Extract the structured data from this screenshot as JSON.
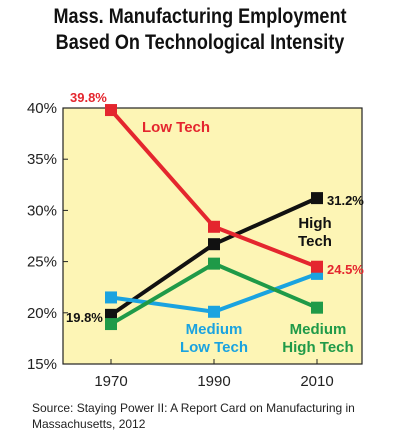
{
  "title_line1": "Mass. Manufacturing Employment",
  "title_line2": "Based On Technological Intensity",
  "source": "Source: Staying Power II: A Report Card on Manufacturing in Massachusetts, 2012",
  "chart_data": {
    "type": "line",
    "title": "Mass. Manufacturing Employment Based On Technological Intensity",
    "x": [
      "1970",
      "1990",
      "2010"
    ],
    "ylim": [
      15,
      40
    ],
    "yticks": [
      "15%",
      "20%",
      "25%",
      "30%",
      "35%",
      "40%"
    ],
    "ytick_values": [
      15,
      20,
      25,
      30,
      35,
      40
    ],
    "grid": false,
    "background": "#fdf5b5",
    "series": [
      {
        "name": "Low Tech",
        "color": "#e4262e",
        "values": [
          39.8,
          28.4,
          24.5
        ]
      },
      {
        "name": "High Tech",
        "color": "#111111",
        "values": [
          19.8,
          26.7,
          31.2
        ]
      },
      {
        "name": "Medium Low Tech",
        "color": "#1aa3e0",
        "values": [
          21.5,
          20.1,
          23.8
        ]
      },
      {
        "name": "Medium High Tech",
        "color": "#1f9a48",
        "values": [
          18.9,
          24.8,
          20.5
        ]
      }
    ],
    "data_labels": [
      {
        "text": "39.8%",
        "color": "#e4262e"
      },
      {
        "text": "31.2%",
        "color": "#111111"
      },
      {
        "text": "24.5%",
        "color": "#e4262e"
      },
      {
        "text": "19.8%",
        "color": "#111111"
      }
    ],
    "series_labels": [
      {
        "lines": [
          "Low Tech"
        ],
        "color": "#e4262e"
      },
      {
        "lines": [
          "High",
          "Tech"
        ],
        "color": "#111111"
      },
      {
        "lines": [
          "Medium",
          "Low Tech"
        ],
        "color": "#1aa3e0"
      },
      {
        "lines": [
          "Medium",
          "High Tech"
        ],
        "color": "#1f9a48"
      }
    ]
  }
}
